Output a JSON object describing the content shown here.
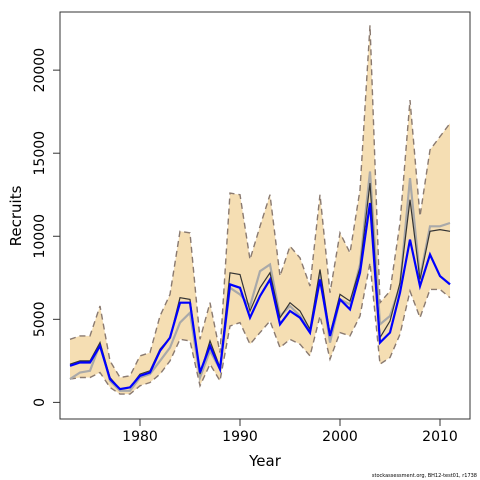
{
  "chart_data": {
    "type": "line",
    "xlabel": "Year",
    "ylabel": "Recruits",
    "credit": "stockassessment.org, BH12-test01, r1738",
    "xlim": [
      1972,
      2013
    ],
    "ylim": [
      -1000,
      23500
    ],
    "x_ticks": [
      1980,
      1990,
      2000,
      2010
    ],
    "y_ticks": [
      0,
      5000,
      10000,
      15000,
      20000
    ],
    "colors": {
      "band": "#f5deb3",
      "bounds": "#8a7a70",
      "estimate": "#0000ff",
      "base_run": "#a9a9a9",
      "retro": "#333333"
    },
    "years": [
      1973,
      1974,
      1975,
      1976,
      1977,
      1978,
      1979,
      1980,
      1981,
      1982,
      1983,
      1984,
      1985,
      1986,
      1987,
      1988,
      1989,
      1990,
      1991,
      1992,
      1993,
      1994,
      1995,
      1996,
      1997,
      1998,
      1999,
      2000,
      2001,
      2002,
      2003,
      2004,
      2005,
      2006,
      2007,
      2008,
      2009,
      2010,
      2011
    ],
    "series": [
      {
        "role": "lower",
        "values": [
          1400,
          1500,
          1500,
          1800,
          900,
          500,
          500,
          1000,
          1200,
          1700,
          2500,
          3800,
          3700,
          1000,
          2300,
          1300,
          4600,
          4800,
          3500,
          4200,
          4900,
          3300,
          3800,
          3500,
          2800,
          5200,
          2600,
          4200,
          4000,
          5200,
          8400,
          2300,
          2700,
          4100,
          6700,
          5100,
          6800,
          6800,
          6300
        ]
      },
      {
        "role": "upper",
        "values": [
          3800,
          4000,
          4000,
          5800,
          2500,
          1500,
          1600,
          2800,
          3000,
          5200,
          6500,
          10300,
          10200,
          3800,
          6000,
          3000,
          12600,
          12500,
          8600,
          10600,
          12500,
          7600,
          9400,
          8700,
          7000,
          12500,
          6600,
          10200,
          9000,
          12800,
          22700,
          6000,
          6700,
          10800,
          18200,
          11200,
          15200,
          16000,
          16800
        ]
      },
      {
        "role": "estimate",
        "values": [
          2200,
          2400,
          2400,
          3400,
          1400,
          800,
          900,
          1600,
          1800,
          3100,
          3900,
          6000,
          6000,
          1800,
          3400,
          2000,
          7100,
          6900,
          5100,
          6400,
          7400,
          4700,
          5500,
          5100,
          4200,
          7400,
          4000,
          6200,
          5600,
          7800,
          12000,
          3600,
          4200,
          6600,
          9800,
          7000,
          8900,
          7600,
          7100
        ]
      },
      {
        "role": "base-run",
        "values": [
          1400,
          1800,
          1900,
          3500,
          1300,
          700,
          700,
          1500,
          1700,
          2500,
          3300,
          4800,
          5400,
          1500,
          3100,
          2000,
          6900,
          6500,
          5800,
          7900,
          8300,
          5200,
          5800,
          5200,
          4300,
          7700,
          3600,
          6200,
          5900,
          8300,
          13900,
          4700,
          5200,
          7000,
          13500,
          7500,
          10600,
          10600,
          10800
        ]
      },
      {
        "role": "retro",
        "values": [
          2300,
          2500,
          2500,
          3600,
          1500,
          800,
          900,
          1700,
          1900,
          3200,
          3900,
          6300,
          6200,
          1700,
          3700,
          2100,
          7800,
          7700,
          5500,
          6900,
          7800,
          5100,
          6000,
          5500,
          4400,
          8000,
          4100,
          6500,
          6100,
          8100,
          13200,
          3900,
          4900,
          7200,
          12200,
          7400,
          10300,
          10400,
          10300
        ]
      }
    ]
  }
}
